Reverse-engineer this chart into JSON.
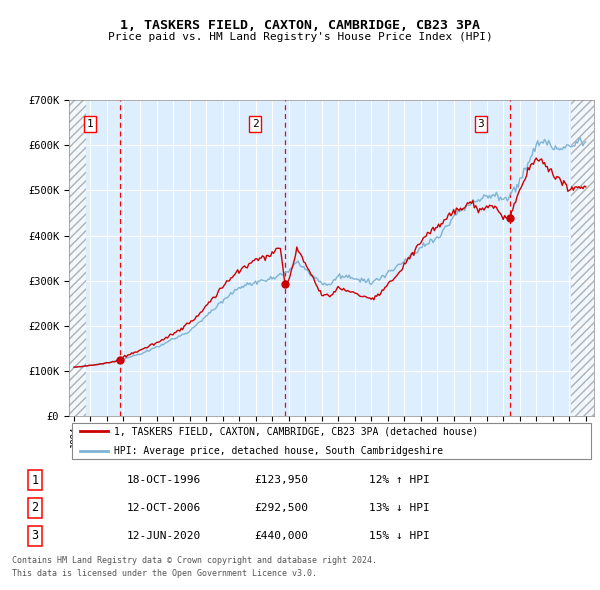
{
  "title": "1, TASKERS FIELD, CAXTON, CAMBRIDGE, CB23 3PA",
  "subtitle": "Price paid vs. HM Land Registry's House Price Index (HPI)",
  "legend_line1": "1, TASKERS FIELD, CAXTON, CAMBRIDGE, CB23 3PA (detached house)",
  "legend_line2": "HPI: Average price, detached house, South Cambridgeshire",
  "footer1": "Contains HM Land Registry data © Crown copyright and database right 2024.",
  "footer2": "This data is licensed under the Open Government Licence v3.0.",
  "transactions": [
    {
      "label": "1",
      "date": "18-OCT-1996",
      "price": 123950,
      "pct": "12%",
      "dir": "↑"
    },
    {
      "label": "2",
      "date": "12-OCT-2006",
      "price": 292500,
      "pct": "13%",
      "dir": "↓"
    },
    {
      "label": "3",
      "date": "12-JUN-2020",
      "price": 440000,
      "pct": "15%",
      "dir": "↓"
    }
  ],
  "transaction_years": [
    1996.79,
    2006.78,
    2020.44
  ],
  "transaction_prices": [
    123950,
    292500,
    440000
  ],
  "ylim": [
    0,
    700000
  ],
  "xlim_left": 1993.7,
  "xlim_right": 2025.5,
  "hatch_right_start": 2024.08,
  "pre_hatch_end": 1994.75,
  "red_color": "#cc0000",
  "blue_color": "#7fb3d3",
  "bg_color": "#ddeeff",
  "grid_color": "#ffffff"
}
